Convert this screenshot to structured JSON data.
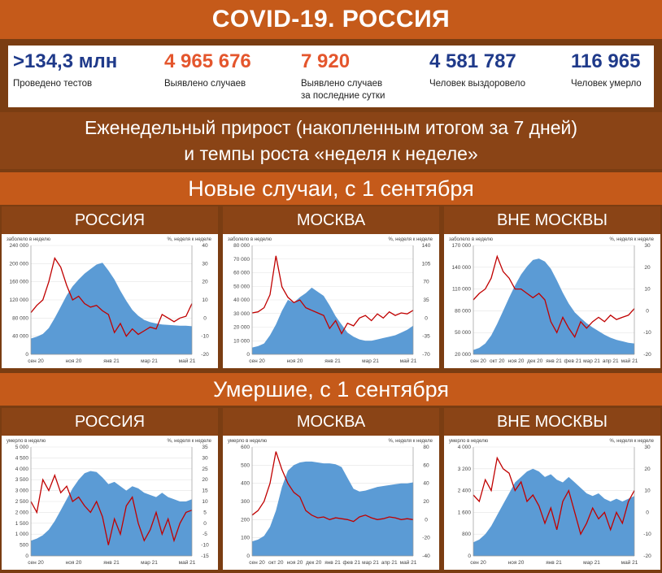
{
  "title": "COVID-19. РОССИЯ",
  "stats": [
    {
      "value": ">134,3 млн",
      "label1": "Проведено тестов",
      "label2": "",
      "color": "#1f3a8a"
    },
    {
      "value": "4 965 676",
      "label1": "Выявлено случаев",
      "label2": "",
      "color": "#e4562d"
    },
    {
      "value": "7 920",
      "label1": "Выявлено случаев",
      "label2": "за последние сутки",
      "color": "#e4562d"
    },
    {
      "value": "4 581 787",
      "label1": "Человек выздоровело",
      "label2": "",
      "color": "#1f3a8a"
    },
    {
      "value": "116 965",
      "label1": "Человек умерло",
      "label2": "",
      "color": "#1f3a8a"
    }
  ],
  "subtitle": {
    "line1": "Еженедельный прирост (накопленным итогом за 7 дней)",
    "line2": "и темпы роста «неделя к неделе»"
  },
  "sections": {
    "cases": "Новые случаи, с 1 сентября",
    "deaths": "Умершие, с 1 сентября"
  },
  "colors": {
    "area": "#5b9bd5",
    "line": "#c00000",
    "title_band": "#c55a1a",
    "dark_band": "#8a4416"
  },
  "chart_data": [
    {
      "type": "area",
      "title": "РОССИЯ",
      "ylabel": "заболело в неделю",
      "y2label": "%, неделя к неделе",
      "ylim": [
        0,
        240000
      ],
      "yticks": [
        "0",
        "40 000",
        "80 000",
        "120 000",
        "160 000",
        "200 000",
        "240 000"
      ],
      "y2lim": [
        -20,
        40
      ],
      "y2ticks": [
        "-20",
        "-10",
        "0",
        "10",
        "20",
        "30",
        "40"
      ],
      "xticks": [
        "сен 20",
        "ноя 20",
        "янв 21",
        "мар 21",
        "май 21"
      ],
      "series": [
        {
          "kind": "area",
          "values": [
            35000,
            39000,
            45000,
            58000,
            80000,
            105000,
            130000,
            150000,
            165000,
            178000,
            188000,
            198000,
            202000,
            185000,
            165000,
            140000,
            118000,
            98000,
            85000,
            76000,
            71000,
            68000,
            66000,
            65000,
            64000,
            63000,
            63000,
            62000
          ]
        },
        {
          "kind": "line",
          "values": [
            3,
            7,
            10,
            20,
            33,
            28,
            18,
            10,
            12,
            8,
            6,
            7,
            4,
            2,
            -8,
            -3,
            -10,
            -6,
            -9,
            -7,
            -5,
            -6,
            2,
            0,
            -2,
            0,
            1,
            8
          ]
        }
      ]
    },
    {
      "type": "area",
      "title": "МОСКВА",
      "ylabel": "заболело в неделю",
      "y2label": "%, неделя к неделе",
      "ylim": [
        0,
        80000
      ],
      "yticks": [
        "0",
        "10 000",
        "20 000",
        "30 000",
        "40 000",
        "50 000",
        "60 000",
        "70 000",
        "80 000"
      ],
      "y2lim": [
        -70,
        140
      ],
      "y2ticks": [
        "-70",
        "-35",
        "0",
        "35",
        "70",
        "105",
        "140"
      ],
      "xticks": [
        "сен 20",
        "ноя 20",
        "янв 21",
        "мар 21",
        "май 21"
      ],
      "series": [
        {
          "kind": "area",
          "values": [
            5000,
            6000,
            8000,
            14000,
            22000,
            32000,
            40000,
            38000,
            42000,
            45000,
            49000,
            46000,
            43000,
            36000,
            28000,
            22000,
            16000,
            13000,
            11000,
            10000,
            10000,
            11000,
            12000,
            13000,
            14000,
            16000,
            18000,
            21000
          ]
        },
        {
          "kind": "line",
          "values": [
            10,
            12,
            20,
            45,
            120,
            60,
            40,
            30,
            35,
            20,
            15,
            10,
            5,
            -20,
            -5,
            -30,
            -10,
            -15,
            0,
            5,
            -5,
            8,
            0,
            12,
            5,
            10,
            8,
            15
          ]
        }
      ]
    },
    {
      "type": "area",
      "title": "ВНЕ МОСКВЫ",
      "ylabel": "заболело в неделю",
      "y2label": "%, неделя к неделе",
      "ylim": [
        20000,
        170000
      ],
      "yticks": [
        "20 000",
        "50 000",
        "80 000",
        "110 000",
        "140 000",
        "170 000"
      ],
      "y2lim": [
        -20,
        30
      ],
      "y2ticks": [
        "-20",
        "-10",
        "0",
        "10",
        "20",
        "30"
      ],
      "xticks": [
        "сен 20",
        "окт 20",
        "ноя 20",
        "дек 20",
        "янв 21",
        "фев 21",
        "мар 21",
        "апр 21",
        "май 21"
      ],
      "series": [
        {
          "kind": "area",
          "values": [
            26000,
            29000,
            35000,
            46000,
            62000,
            80000,
            98000,
            115000,
            130000,
            141000,
            150000,
            152000,
            148000,
            138000,
            122000,
            105000,
            90000,
            78000,
            70000,
            63000,
            57000,
            52000,
            47000,
            43000,
            40000,
            38000,
            36000,
            35000
          ]
        },
        {
          "kind": "line",
          "values": [
            5,
            8,
            10,
            15,
            25,
            18,
            15,
            10,
            10,
            8,
            6,
            8,
            5,
            -5,
            -10,
            -3,
            -8,
            -12,
            -5,
            -8,
            -5,
            -3,
            -5,
            -2,
            -4,
            -3,
            -2,
            1
          ]
        }
      ]
    },
    {
      "type": "area",
      "title": "РОССИЯ",
      "ylabel": "умерло в неделю",
      "y2label": "%, неделя к неделе",
      "ylim": [
        0,
        5000
      ],
      "yticks": [
        "0",
        "500",
        "1 000",
        "1 500",
        "2 000",
        "2 500",
        "3 000",
        "3 500",
        "4 000",
        "4 500",
        "5 000"
      ],
      "y2lim": [
        -15,
        35
      ],
      "y2ticks": [
        "-15",
        "-10",
        "-5",
        "0",
        "5",
        "10",
        "15",
        "20",
        "25",
        "30",
        "35"
      ],
      "xticks": [
        "сен 20",
        "ноя 20",
        "янв 21",
        "мар 21",
        "май 21"
      ],
      "series": [
        {
          "kind": "area",
          "values": [
            700,
            800,
            950,
            1200,
            1600,
            2100,
            2600,
            3100,
            3500,
            3800,
            3900,
            3850,
            3600,
            3300,
            3400,
            3200,
            3000,
            3200,
            3100,
            2900,
            2800,
            2700,
            2900,
            2700,
            2600,
            2500,
            2500,
            2600
          ]
        },
        {
          "kind": "line",
          "values": [
            10,
            5,
            20,
            15,
            22,
            14,
            17,
            10,
            12,
            8,
            5,
            10,
            3,
            -10,
            2,
            -5,
            8,
            12,
            0,
            -8,
            -3,
            5,
            -5,
            2,
            -8,
            0,
            5,
            6
          ]
        }
      ]
    },
    {
      "type": "area",
      "title": "МОСКВА",
      "ylabel": "умерло в неделю",
      "y2label": "%, неделя к неделе",
      "ylim": [
        0,
        600
      ],
      "yticks": [
        "0",
        "100",
        "200",
        "300",
        "400",
        "500",
        "600"
      ],
      "y2lim": [
        -40,
        80
      ],
      "y2ticks": [
        "-40",
        "-20",
        "0",
        "20",
        "40",
        "60",
        "80"
      ],
      "xticks": [
        "сен 20",
        "окт 20",
        "ноя 20",
        "дек 20",
        "янв 21",
        "фев 21",
        "мар 21",
        "апр 21",
        "май 21"
      ],
      "series": [
        {
          "kind": "area",
          "values": [
            80,
            90,
            110,
            160,
            250,
            380,
            470,
            500,
            515,
            520,
            520,
            515,
            510,
            510,
            505,
            490,
            430,
            370,
            355,
            360,
            370,
            380,
            385,
            390,
            395,
            400,
            400,
            405
          ]
        },
        {
          "kind": "line",
          "values": [
            5,
            10,
            20,
            40,
            75,
            55,
            40,
            30,
            25,
            10,
            5,
            2,
            3,
            0,
            2,
            1,
            0,
            -2,
            3,
            5,
            2,
            0,
            1,
            3,
            2,
            0,
            1,
            0
          ]
        }
      ]
    },
    {
      "type": "area",
      "title": "ВНЕ МОСКВЫ",
      "ylabel": "умерло в неделю",
      "y2label": "%, неделя к неделе",
      "ylim": [
        0,
        4000
      ],
      "yticks": [
        "0",
        "800",
        "1 600",
        "2 400",
        "3 200",
        "4 000"
      ],
      "y2lim": [
        -20,
        30
      ],
      "y2ticks": [
        "-20",
        "-10",
        "0",
        "10",
        "20",
        "30"
      ],
      "xticks": [
        "сен 20",
        "ноя 20",
        "янв 21",
        "мар 21",
        "май 21"
      ],
      "series": [
        {
          "kind": "area",
          "values": [
            500,
            600,
            800,
            1100,
            1500,
            1900,
            2300,
            2700,
            2900,
            3100,
            3200,
            3100,
            2900,
            3000,
            2800,
            2700,
            2900,
            2700,
            2500,
            2300,
            2200,
            2300,
            2100,
            2000,
            2100,
            2000,
            2100,
            2200
          ]
        },
        {
          "kind": "line",
          "values": [
            8,
            5,
            15,
            10,
            25,
            20,
            18,
            10,
            14,
            5,
            8,
            3,
            -5,
            2,
            -8,
            5,
            10,
            0,
            -10,
            -5,
            2,
            -3,
            0,
            -8,
            0,
            -5,
            5,
            10
          ]
        }
      ]
    }
  ]
}
